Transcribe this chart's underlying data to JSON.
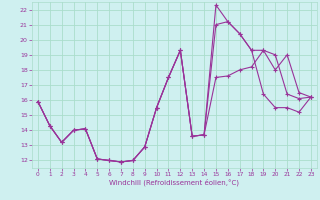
{
  "background_color": "#cff0f0",
  "grid_color": "#aaddcc",
  "line_color": "#993399",
  "xlabel": "Windchill (Refroidissement éolien,°C)",
  "xlim": [
    -0.5,
    23.5
  ],
  "ylim": [
    11.5,
    22.5
  ],
  "xticks": [
    0,
    1,
    2,
    3,
    4,
    5,
    6,
    7,
    8,
    9,
    10,
    11,
    12,
    13,
    14,
    15,
    16,
    17,
    18,
    19,
    20,
    21,
    22,
    23
  ],
  "yticks": [
    12,
    13,
    14,
    15,
    16,
    17,
    18,
    19,
    20,
    21,
    22
  ],
  "line1_x": [
    0,
    1,
    2,
    3,
    4,
    5,
    6,
    7,
    8,
    9,
    10,
    11,
    12,
    13,
    14,
    15,
    16,
    17,
    18,
    19,
    20,
    21,
    22,
    23
  ],
  "line1_y": [
    15.9,
    14.3,
    13.2,
    14.0,
    14.1,
    12.1,
    12.0,
    11.9,
    12.0,
    12.9,
    15.5,
    17.5,
    19.3,
    13.6,
    13.7,
    22.3,
    21.2,
    20.4,
    19.3,
    16.4,
    15.5,
    15.5,
    15.2,
    16.2
  ],
  "line2_x": [
    0,
    1,
    2,
    3,
    4,
    5,
    6,
    7,
    8,
    9,
    10,
    11,
    12,
    13,
    14,
    15,
    16,
    17,
    18,
    19,
    20,
    21,
    22,
    23
  ],
  "line2_y": [
    15.9,
    14.3,
    13.2,
    14.0,
    14.1,
    12.1,
    12.0,
    11.9,
    12.0,
    12.9,
    15.5,
    17.5,
    19.3,
    13.6,
    13.7,
    21.0,
    21.2,
    20.4,
    19.3,
    19.3,
    19.0,
    16.4,
    16.1,
    16.2
  ],
  "line3_x": [
    0,
    1,
    2,
    3,
    4,
    5,
    6,
    7,
    8,
    9,
    10,
    11,
    12,
    13,
    14,
    15,
    16,
    17,
    18,
    19,
    20,
    21,
    22,
    23
  ],
  "line3_y": [
    15.9,
    14.3,
    13.2,
    14.0,
    14.1,
    12.1,
    12.0,
    11.9,
    12.0,
    12.9,
    15.5,
    17.5,
    19.3,
    13.6,
    13.7,
    17.5,
    17.6,
    18.0,
    18.2,
    19.3,
    18.0,
    19.0,
    16.5,
    16.2
  ]
}
